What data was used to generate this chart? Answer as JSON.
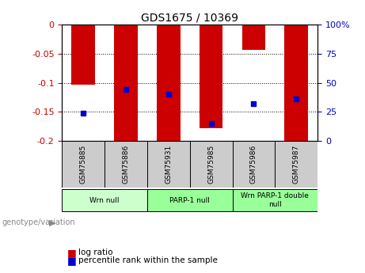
{
  "title": "GDS1675 / 10369",
  "samples": [
    "GSM75885",
    "GSM75886",
    "GSM75931",
    "GSM75985",
    "GSM75986",
    "GSM75987"
  ],
  "log_ratio": [
    -0.103,
    -0.2,
    -0.2,
    -0.178,
    -0.043,
    -0.2
  ],
  "percentile_rank": [
    24.0,
    44.0,
    40.0,
    15.0,
    32.0,
    36.0
  ],
  "ylim_left": [
    -0.2,
    0.0
  ],
  "ylim_right": [
    0,
    100
  ],
  "yticks_left": [
    0,
    -0.05,
    -0.1,
    -0.15,
    -0.2
  ],
  "yticks_right": [
    100,
    75,
    50,
    25,
    0
  ],
  "bar_color": "#cc0000",
  "dot_color": "#0000cc",
  "background_color": "#ffffff",
  "plot_bg_color": "#ffffff",
  "sample_bg_color": "#cccccc",
  "group_bg_color_1": "#ccffcc",
  "group_bg_color_2": "#99ff99",
  "legend_log_ratio_color": "#cc0000",
  "legend_pct_color": "#0000cc",
  "bar_width": 0.55,
  "group_info": [
    {
      "start": 0,
      "end": 1,
      "label": "Wrn null",
      "color": "#ccffcc"
    },
    {
      "start": 2,
      "end": 3,
      "label": "PARP-1 null",
      "color": "#99ff99"
    },
    {
      "start": 4,
      "end": 5,
      "label": "Wrn PARP-1 double\nnull",
      "color": "#99ff99"
    }
  ]
}
